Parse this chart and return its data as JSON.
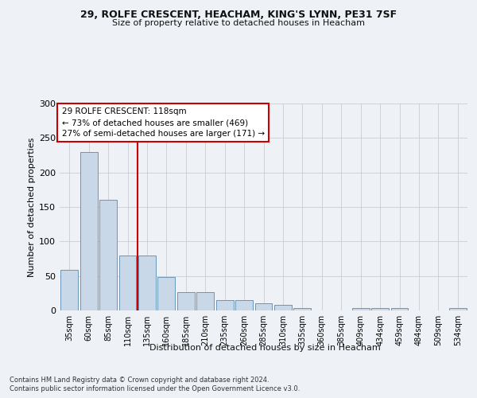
{
  "title1": "29, ROLFE CRESCENT, HEACHAM, KING'S LYNN, PE31 7SF",
  "title2": "Size of property relative to detached houses in Heacham",
  "xlabel": "Distribution of detached houses by size in Heacham",
  "ylabel": "Number of detached properties",
  "bar_labels": [
    "35sqm",
    "60sqm",
    "85sqm",
    "110sqm",
    "135sqm",
    "160sqm",
    "185sqm",
    "210sqm",
    "235sqm",
    "260sqm",
    "285sqm",
    "310sqm",
    "335sqm",
    "360sqm",
    "385sqm",
    "409sqm",
    "434sqm",
    "459sqm",
    "484sqm",
    "509sqm",
    "534sqm"
  ],
  "bar_values": [
    59,
    230,
    160,
    80,
    80,
    48,
    27,
    27,
    15,
    15,
    10,
    8,
    4,
    0,
    0,
    4,
    4,
    4,
    0,
    0,
    3
  ],
  "bar_color": "#c8d8e8",
  "bar_edge_color": "#5a8ab0",
  "vline_x_idx": 3,
  "vline_color": "#cc0000",
  "annotation_text": "29 ROLFE CRESCENT: 118sqm\n← 73% of detached houses are smaller (469)\n27% of semi-detached houses are larger (171) →",
  "annotation_box_color": "#ffffff",
  "annotation_box_edge": "#cc0000",
  "footnote1": "Contains HM Land Registry data © Crown copyright and database right 2024.",
  "footnote2": "Contains public sector information licensed under the Open Government Licence v3.0.",
  "bg_color": "#eef2f7",
  "plot_bg_color": "#eef2f7",
  "ylim": [
    0,
    300
  ],
  "yticks": [
    0,
    50,
    100,
    150,
    200,
    250,
    300
  ],
  "grid_color": "#cccccc"
}
